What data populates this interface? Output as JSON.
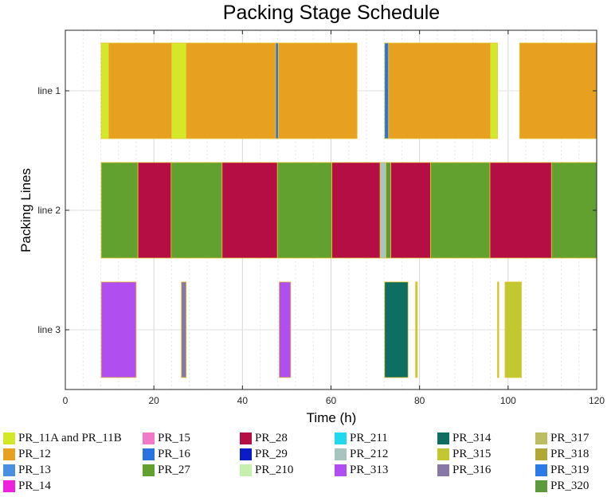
{
  "chart_data": {
    "type": "gantt",
    "title": "Packing Stage Schedule",
    "xlabel": "Time (h)",
    "ylabel": "Packing Lines",
    "xlim": [
      0,
      120
    ],
    "xticks": [
      0,
      20,
      40,
      60,
      80,
      100,
      120
    ],
    "grid": true,
    "lines": [
      "line 1",
      "line 2",
      "line 3"
    ],
    "tasks": [
      {
        "line": "line 1",
        "product": "PR_11A and PR_11B",
        "start": 8.1,
        "end": 9.8
      },
      {
        "line": "line 1",
        "product": "PR_12",
        "start": 9.8,
        "end": 24.0
      },
      {
        "line": "line 1",
        "product": "PR_11A and PR_11B",
        "start": 24.0,
        "end": 27.3
      },
      {
        "line": "line 1",
        "product": "PR_12",
        "start": 27.3,
        "end": 47.5
      },
      {
        "line": "line 1",
        "product": "PR_16",
        "start": 47.5,
        "end": 48.1
      },
      {
        "line": "line 1",
        "product": "PR_12",
        "start": 48.1,
        "end": 65.9
      },
      {
        "line": "line 1",
        "product": "PR_16",
        "start": 72.1,
        "end": 73.0
      },
      {
        "line": "line 1",
        "product": "PR_12",
        "start": 73.0,
        "end": 96.0
      },
      {
        "line": "line 1",
        "product": "PR_11A and PR_11B",
        "start": 96.0,
        "end": 97.6
      },
      {
        "line": "line 1",
        "product": "PR_12",
        "start": 102.6,
        "end": 120.0
      },
      {
        "line": "line 2",
        "product": "PR_27",
        "start": 8.1,
        "end": 16.4
      },
      {
        "line": "line 2",
        "product": "PR_28",
        "start": 16.4,
        "end": 23.9
      },
      {
        "line": "line 2",
        "product": "PR_27",
        "start": 23.9,
        "end": 35.4
      },
      {
        "line": "line 2",
        "product": "PR_28",
        "start": 35.4,
        "end": 47.9
      },
      {
        "line": "line 2",
        "product": "PR_27",
        "start": 47.9,
        "end": 60.2
      },
      {
        "line": "line 2",
        "product": "PR_28",
        "start": 60.2,
        "end": 71.1
      },
      {
        "line": "line 2",
        "product": "PR_212",
        "start": 71.1,
        "end": 72.4
      },
      {
        "line": "line 2",
        "product": "PR_320",
        "start": 72.4,
        "end": 73.5
      },
      {
        "line": "line 2",
        "product": "PR_28",
        "start": 73.5,
        "end": 82.5
      },
      {
        "line": "line 2",
        "product": "PR_27",
        "start": 82.5,
        "end": 95.9
      },
      {
        "line": "line 2",
        "product": "PR_28",
        "start": 95.9,
        "end": 109.8
      },
      {
        "line": "line 2",
        "product": "PR_27",
        "start": 109.8,
        "end": 120.0
      },
      {
        "line": "line 3",
        "product": "PR_313",
        "start": 8.1,
        "end": 16.0
      },
      {
        "line": "line 3",
        "product": "PR_316",
        "start": 26.2,
        "end": 27.3
      },
      {
        "line": "line 3",
        "product": "PR_313",
        "start": 48.3,
        "end": 50.9
      },
      {
        "line": "line 3",
        "product": "PR_314",
        "start": 72.1,
        "end": 77.4
      },
      {
        "line": "line 3",
        "product": "PR_315",
        "start": 79.1,
        "end": 79.5
      },
      {
        "line": "line 3",
        "product": "PR_315",
        "start": 97.6,
        "end": 97.9
      },
      {
        "line": "line 3",
        "product": "PR_315",
        "start": 99.3,
        "end": 103.0
      }
    ],
    "legend": [
      {
        "label": "PR_11A and PR_11B",
        "color": "#d4e82a"
      },
      {
        "label": "PR_12",
        "color": "#e8a020"
      },
      {
        "label": "PR_13",
        "color": "#4a90e2"
      },
      {
        "label": "PR_14",
        "color": "#ee22dd"
      },
      {
        "label": "PR_15",
        "color": "#f07ac8"
      },
      {
        "label": "PR_16",
        "color": "#2a72e0"
      },
      {
        "label": "PR_27",
        "color": "#62a030"
      },
      {
        "label": "PR_28",
        "color": "#b50e45"
      },
      {
        "label": "PR_29",
        "color": "#0a1cc8"
      },
      {
        "label": "PR_210",
        "color": "#c6f0ac"
      },
      {
        "label": "PR_211",
        "color": "#22d8ee"
      },
      {
        "label": "PR_212",
        "color": "#a8c4be"
      },
      {
        "label": "PR_313",
        "color": "#b04ef0"
      },
      {
        "label": "PR_314",
        "color": "#0e6e62"
      },
      {
        "label": "PR_315",
        "color": "#c4c830"
      },
      {
        "label": "PR_316",
        "color": "#8878a8"
      },
      {
        "label": "PR_317",
        "color": "#bcbc60"
      },
      {
        "label": "PR_318",
        "color": "#b0a832"
      },
      {
        "label": "PR_319",
        "color": "#2a7ae8"
      },
      {
        "label": "PR_320",
        "color": "#5c9a3c"
      }
    ],
    "legend_placement": "bottom"
  }
}
